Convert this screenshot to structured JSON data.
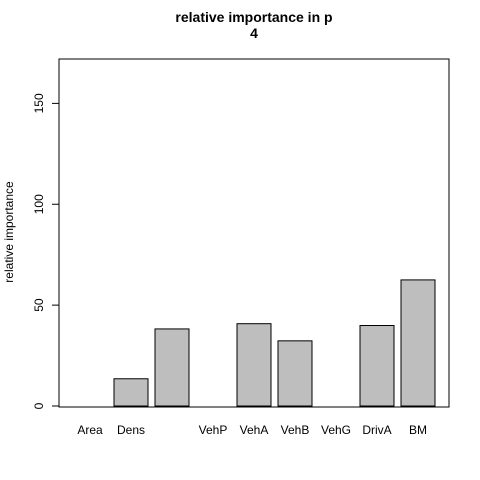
{
  "chart_data": {
    "type": "bar",
    "title": "relative importance in p",
    "subtitle": "4",
    "xlabel": "",
    "ylabel": "relative importance",
    "categories": [
      "Area",
      "Dens",
      "",
      "VehP",
      "VehA",
      "VehB",
      "VehG",
      "DrivA",
      "BM"
    ],
    "values": [
      0,
      13.5,
      38.2,
      0,
      40.8,
      32.3,
      0,
      39.9,
      62.5
    ],
    "ylim": [
      0,
      172
    ],
    "yticks": [
      0,
      50,
      100,
      150
    ],
    "bar_color": "#bebebe",
    "grid": false,
    "legend": "none"
  }
}
